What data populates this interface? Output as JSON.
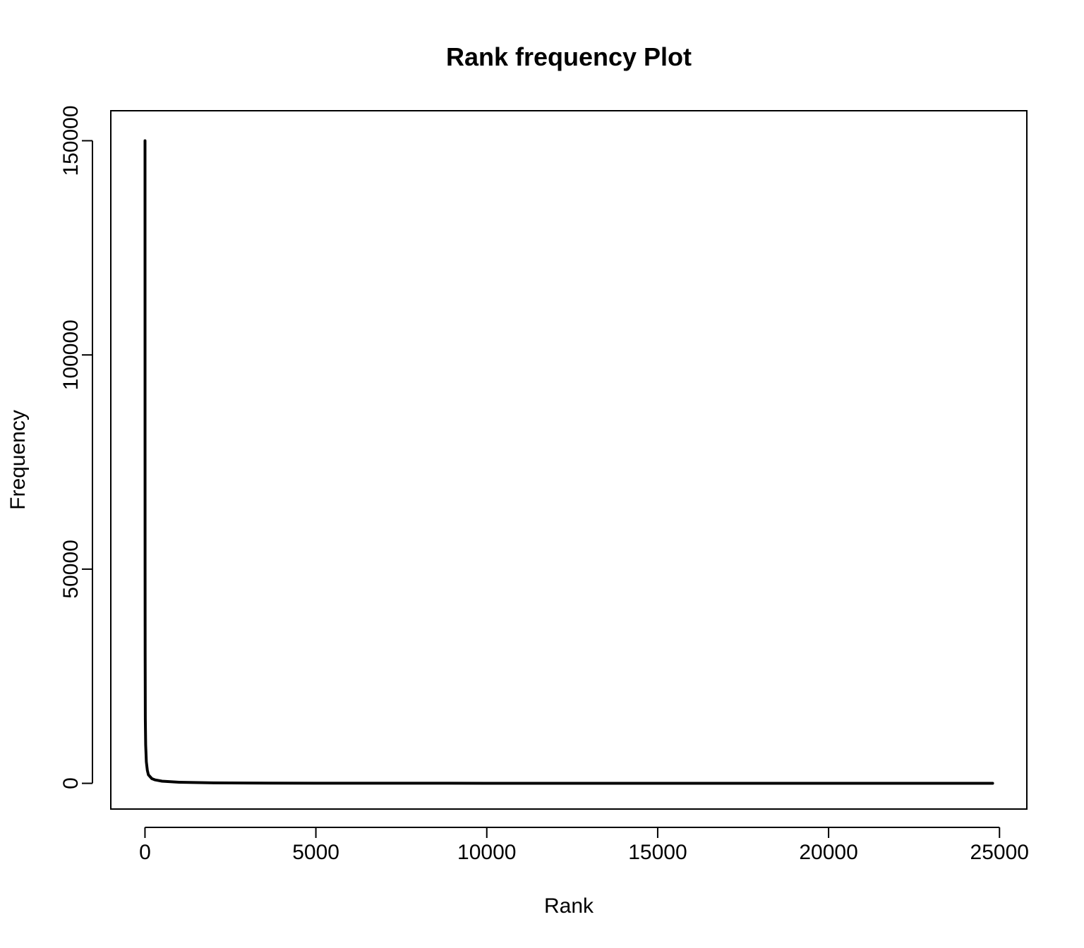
{
  "chart_data": {
    "type": "line",
    "title": "Rank frequency Plot",
    "xlabel": "Rank",
    "ylabel": "Frequency",
    "xlim": [
      -1000,
      25800
    ],
    "ylim": [
      -6000,
      157000
    ],
    "x_ticks": [
      0,
      5000,
      10000,
      15000,
      20000,
      25000
    ],
    "x_tick_labels": [
      "0",
      "5000",
      "10000",
      "15000",
      "20000",
      "25000"
    ],
    "y_ticks": [
      0,
      50000,
      100000,
      150000
    ],
    "y_tick_labels": [
      "0",
      "50000",
      "100000",
      "150000"
    ],
    "grid": false,
    "line_color": "#000000",
    "series": [
      {
        "x": [
          1,
          2,
          3,
          5,
          10,
          20,
          40,
          70,
          100,
          200,
          300,
          500,
          1000,
          2000,
          3000,
          5000,
          10000,
          15000,
          20000,
          24800
        ],
        "y": [
          150000,
          80000,
          50000,
          30000,
          15000,
          9000,
          5000,
          3000,
          2000,
          1100,
          800,
          500,
          250,
          120,
          70,
          40,
          15,
          8,
          4,
          1
        ]
      }
    ]
  }
}
